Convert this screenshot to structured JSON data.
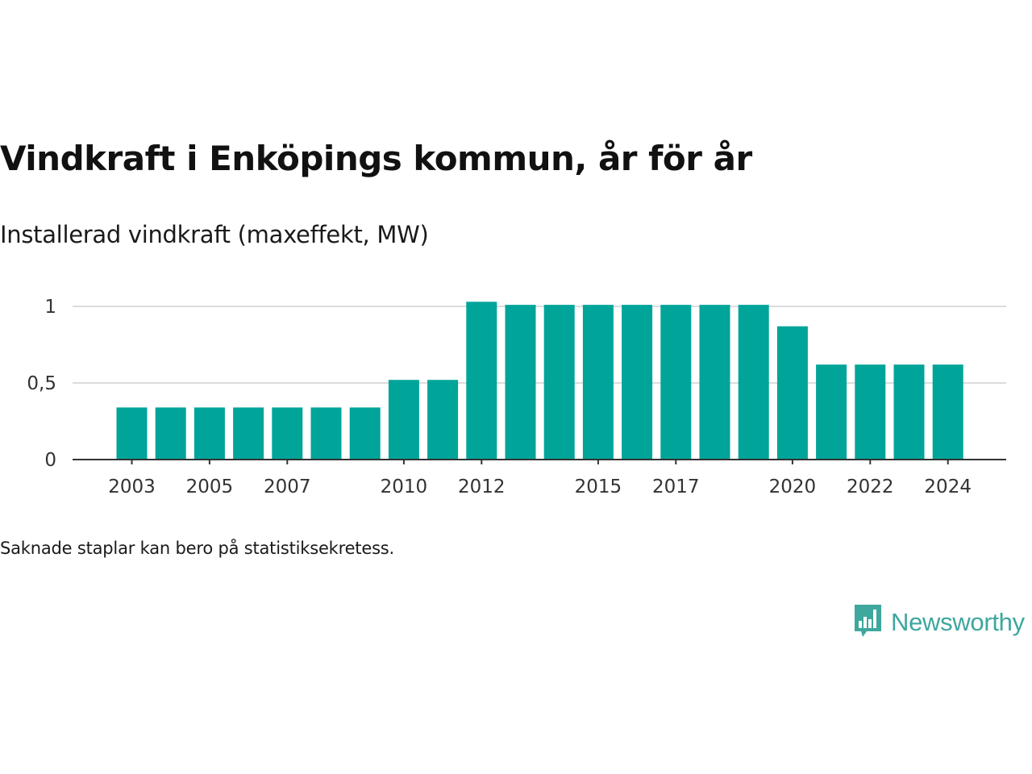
{
  "title": "Vindkraft i Enköpings kommun, år för år",
  "subtitle": "Installerad vindkraft (maxeffekt, MW)",
  "note": "Saknade staplar kan bero på statistiksekretess.",
  "brand": {
    "name": "Newsworthy",
    "logo_icon": "bar-chart-speech-bubble-icon",
    "color": "#3ea79e"
  },
  "chart_data": {
    "type": "bar",
    "categories": [
      "2003",
      "2004",
      "2005",
      "2006",
      "2007",
      "2008",
      "2009",
      "2010",
      "2011",
      "2012",
      "2013",
      "2014",
      "2015",
      "2016",
      "2017",
      "2018",
      "2019",
      "2020",
      "2021",
      "2022",
      "2023",
      "2024"
    ],
    "values": [
      0.34,
      0.34,
      0.34,
      0.34,
      0.34,
      0.34,
      0.34,
      0.52,
      0.52,
      1.03,
      1.01,
      1.01,
      1.01,
      1.01,
      1.01,
      1.01,
      1.01,
      0.87,
      0.62,
      0.62,
      0.62,
      0.62
    ],
    "xtick_labels": [
      "2003",
      "2005",
      "2007",
      "2010",
      "2012",
      "2015",
      "2017",
      "2020",
      "2022",
      "2024"
    ],
    "ytick_values": [
      0,
      0.5,
      1
    ],
    "ytick_labels": [
      "0",
      "0,5",
      "1"
    ],
    "ylim": [
      0,
      1.05
    ],
    "grid": true,
    "bar_color": "#00a499",
    "xlabel": "",
    "ylabel": ""
  }
}
